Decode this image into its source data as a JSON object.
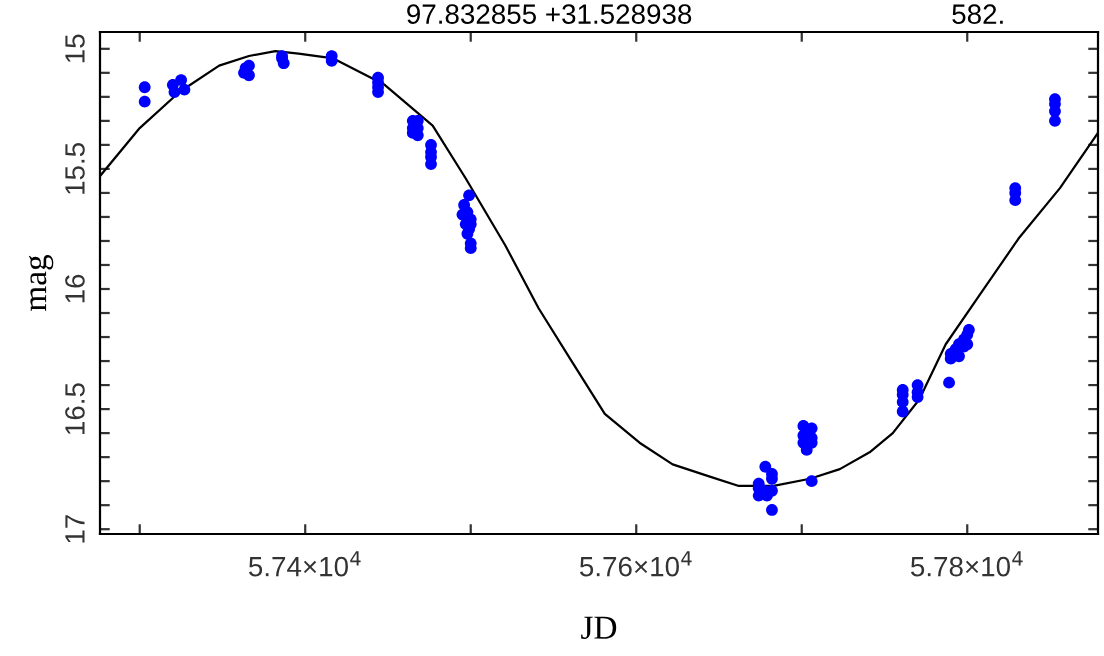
{
  "chart_data": {
    "type": "scatter",
    "title": "97.832855 +31.528938",
    "xlabel": "JD",
    "ylabel": "mag",
    "annotations": [
      "582."
    ],
    "xlim": [
      57276,
      57879
    ],
    "ylim": [
      17.02,
      14.93
    ],
    "xticks": [
      {
        "value": 57300,
        "label": null
      },
      {
        "value": 57400,
        "label": "5.74×10$^{4}$"
      },
      {
        "value": 57500,
        "label": null
      },
      {
        "value": 57600,
        "label": "5.76×10$^{4}$"
      },
      {
        "value": 57700,
        "label": null
      },
      {
        "value": 57800,
        "label": "5.78×10$^{4}$"
      }
    ],
    "yticks": [
      15,
      {
        "value": 15.1,
        "label": null
      },
      {
        "value": 15.2,
        "label": null
      },
      {
        "value": 15.3,
        "label": null
      },
      {
        "value": 15.4,
        "label": null
      },
      15.5,
      {
        "value": 15.6,
        "label": null
      },
      {
        "value": 15.7,
        "label": null
      },
      {
        "value": 15.8,
        "label": null
      },
      {
        "value": 15.9,
        "label": null
      },
      16,
      {
        "value": 16.1,
        "label": null
      },
      {
        "value": 16.2,
        "label": null
      },
      {
        "value": 16.3,
        "label": null
      },
      {
        "value": 16.4,
        "label": null
      },
      16.5,
      {
        "value": 16.6,
        "label": null
      },
      {
        "value": 16.7,
        "label": null
      },
      {
        "value": 16.8,
        "label": null
      },
      {
        "value": 16.9,
        "label": null
      },
      17
    ],
    "grid": false,
    "legend": false,
    "marker": "circle",
    "series": [
      {
        "color": "#0000ff",
        "x": [
          57303,
          57303,
          57320,
          57321,
          57327,
          57325,
          57364,
          57366,
          57363,
          57366,
          57386,
          57386,
          57387,
          57416,
          57416,
          57444,
          57444,
          57444,
          57444,
          57465,
          57468,
          57465,
          57468,
          57465,
          57468,
          57476,
          57476,
          57476,
          57476,
          57499,
          57496,
          57498,
          57495,
          57500,
          57497,
          57499,
          57500,
          57498,
          57500,
          57500,
          57674,
          57674,
          57674,
          57677,
          57678,
          57679,
          57682,
          57682,
          57682,
          57682,
          57701,
          57706,
          57701,
          57706,
          57701,
          57703,
          57706,
          57706,
          57761,
          57761,
          57761,
          57761,
          57770,
          57770,
          57770,
          57789,
          57790,
          57790,
          57793,
          57795,
          57798,
          57798,
          57800,
          57801,
          57800,
          57795,
          57829,
          57829,
          57829,
          57853,
          57853,
          57853,
          57853
        ],
        "values": [
          15.16,
          15.22,
          15.15,
          15.18,
          15.17,
          15.13,
          15.08,
          15.11,
          15.1,
          15.07,
          15.03,
          15.04,
          15.06,
          15.03,
          15.05,
          15.12,
          15.14,
          15.16,
          15.18,
          15.3,
          15.3,
          15.33,
          15.33,
          15.35,
          15.36,
          15.4,
          15.43,
          15.45,
          15.48,
          15.61,
          15.65,
          15.68,
          15.69,
          15.71,
          15.73,
          15.75,
          15.73,
          15.77,
          15.81,
          15.83,
          16.81,
          16.83,
          16.86,
          16.84,
          16.74,
          16.86,
          16.77,
          16.79,
          16.84,
          16.92,
          16.57,
          16.58,
          16.61,
          16.62,
          16.64,
          16.67,
          16.64,
          16.8,
          16.42,
          16.44,
          16.47,
          16.51,
          16.4,
          16.43,
          16.45,
          16.39,
          16.29,
          16.27,
          16.25,
          16.23,
          16.24,
          16.21,
          16.19,
          16.17,
          16.23,
          16.28,
          15.58,
          15.6,
          15.63,
          15.21,
          15.23,
          15.26,
          15.3
        ]
      },
      {
        "type": "line",
        "color": "#000000",
        "marker": "none",
        "line_style": "solid",
        "x": [
          57276,
          57300,
          57324,
          57348,
          57366,
          57382,
          57396,
          57417,
          57448,
          57477,
          57497,
          57521,
          57541,
          57560,
          57581,
          57602,
          57622,
          57644,
          57662,
          57683,
          57705,
          57723,
          57741,
          57755,
          57771,
          57787,
          57807,
          57831,
          57856,
          57879
        ],
        "values": [
          15.53,
          15.33,
          15.18,
          15.07,
          15.03,
          15.01,
          15.02,
          15.04,
          15.15,
          15.32,
          15.54,
          15.82,
          16.08,
          16.29,
          16.52,
          16.64,
          16.73,
          16.78,
          16.82,
          16.82,
          16.79,
          16.75,
          16.68,
          16.6,
          16.46,
          16.23,
          16.03,
          15.79,
          15.58,
          15.35
        ]
      }
    ]
  }
}
